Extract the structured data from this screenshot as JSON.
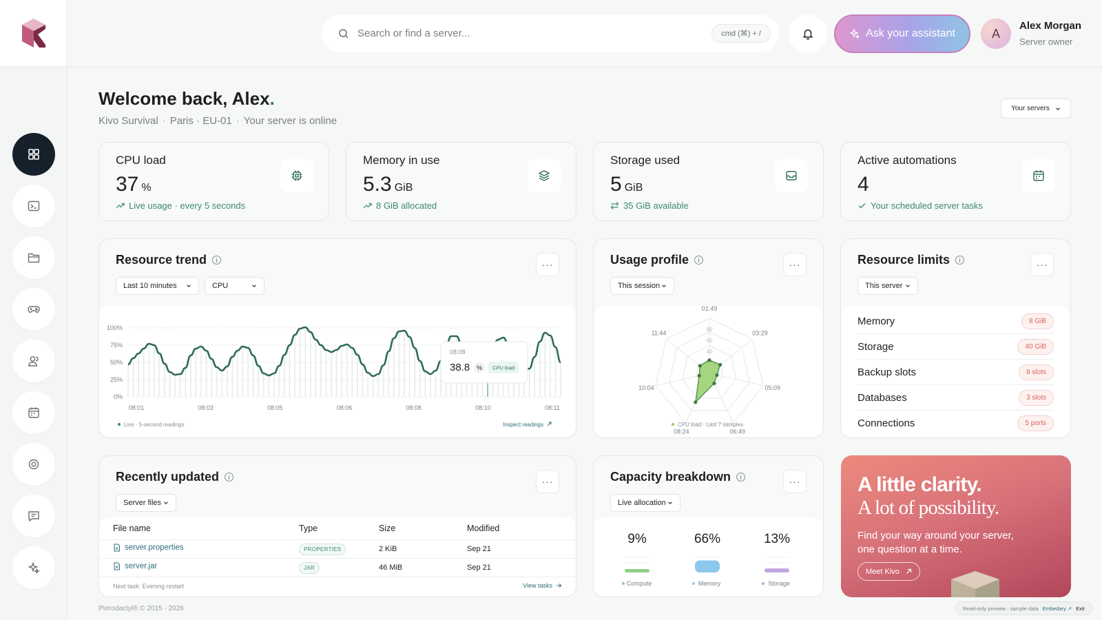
{
  "header": {
    "search_placeholder": "Search or find a server...",
    "shortcut": "cmd (⌘) + /",
    "assistant_label": "Ask your assistant",
    "user": {
      "initial": "A",
      "name": "Alex Morgan",
      "role": "Server owner"
    }
  },
  "sidebar": {
    "items": [
      {
        "icon": "dashboard-icon",
        "active": true
      },
      {
        "icon": "terminal-icon"
      },
      {
        "icon": "folder-icon"
      },
      {
        "icon": "gamepad-icon"
      },
      {
        "icon": "users-icon"
      },
      {
        "icon": "calendar-icon"
      },
      {
        "icon": "settings-icon"
      },
      {
        "icon": "chat-icon"
      },
      {
        "icon": "sparkle-icon"
      }
    ]
  },
  "welcome": {
    "title": "Welcome back, Alex",
    "server_name": "Kivo Survival",
    "location": "Paris · EU-01",
    "status": "Your server is online",
    "servers_button": "Your servers"
  },
  "stats": [
    {
      "label": "CPU load",
      "value": "37",
      "unit": "%",
      "note": "Live usage · every 5 seconds",
      "icon": "cpu-icon"
    },
    {
      "label": "Memory in use",
      "value": "5.3",
      "unit": "GiB",
      "note": "8 GiB allocated",
      "icon": "layers-icon"
    },
    {
      "label": "Storage used",
      "value": "5",
      "unit": "GiB",
      "note": "35 GiB available",
      "icon": "inbox-icon"
    },
    {
      "label": "Active automations",
      "value": "4",
      "unit": "",
      "note": "Your scheduled server tasks",
      "icon": "calendar-icon"
    }
  ],
  "resource_trend": {
    "title": "Resource trend",
    "range_select": "Last 10 minutes",
    "metric_select": "CPU",
    "footer_left": "Live · 5-second readings",
    "footer_right": "Inspect readings",
    "tooltip": {
      "time": "08:08",
      "value": "38.8",
      "unit": "%",
      "tag": "CPU load"
    }
  },
  "usage_profile": {
    "title": "Usage profile",
    "select": "This session",
    "legend": "CPU load · Last 7 samples"
  },
  "resource_limits": {
    "title": "Resource limits",
    "select": "This server",
    "rows": [
      {
        "name": "Memory",
        "value": "8 GiB"
      },
      {
        "name": "Storage",
        "value": "40 GiB"
      },
      {
        "name": "Backup slots",
        "value": "8 slots"
      },
      {
        "name": "Databases",
        "value": "3 slots"
      },
      {
        "name": "Connections",
        "value": "5 ports"
      }
    ]
  },
  "recently_updated": {
    "title": "Recently updated",
    "select": "Server files",
    "columns": [
      "File name",
      "Type",
      "Size",
      "Modified"
    ],
    "rows": [
      {
        "name": "server.properties",
        "type": "PROPERTIES",
        "size": "2 KiB",
        "modified": "Sep 21"
      },
      {
        "name": "server.jar",
        "type": "JAR",
        "size": "46 MiB",
        "modified": "Sep 21"
      }
    ],
    "footer_left": "Next task: Evening restart",
    "footer_right": "View tasks"
  },
  "capacity": {
    "title": "Capacity breakdown",
    "select": "Live allocation",
    "items": [
      {
        "pct": "9%",
        "label": "Compute",
        "fraction": 0.09,
        "color": "#8fd08a"
      },
      {
        "pct": "66%",
        "label": "Memory",
        "fraction": 0.66,
        "color": "#8cc8ec"
      },
      {
        "pct": "13%",
        "label": "Storage",
        "fraction": 0.13,
        "color": "#c2a6e0"
      }
    ]
  },
  "promo": {
    "line1": "A little clarity.",
    "line2": "A lot of possibility.",
    "body": "Find your way around your server, one question at a time.",
    "button": "Meet Kivo"
  },
  "footer": {
    "copyright": "Pterodactyl® © 2015 - 2026",
    "preview": "Read-only preview · sample data",
    "embed": "Embedary",
    "exit": "Exit"
  },
  "chart_data": [
    {
      "type": "line",
      "title": "Resource trend",
      "series": [
        {
          "name": "CPU load",
          "values": [
            47,
            56,
            63,
            70,
            77,
            75,
            63,
            48,
            36,
            32,
            33,
            42,
            60,
            70,
            73,
            67,
            55,
            43,
            38,
            44,
            58,
            67,
            73,
            71,
            60,
            45,
            34,
            31,
            34,
            45,
            61,
            75,
            90,
            99,
            101,
            94,
            83,
            75,
            68,
            65,
            68,
            74,
            76,
            71,
            61,
            47,
            35,
            30,
            33,
            46,
            66,
            85,
            95,
            96,
            87,
            71,
            52,
            37,
            33,
            38,
            52,
            75,
            88,
            88,
            77,
            58,
            43,
            38,
            43,
            58,
            74,
            83,
            86,
            76,
            62,
            45,
            36,
            41,
            58,
            80,
            93,
            89,
            72,
            50
          ]
        }
      ],
      "x_ticks": [
        "08:01",
        "08:03",
        "08:05",
        "08:06",
        "08:08",
        "08:10",
        "08:11"
      ],
      "y_ticks": [
        "0%",
        "25%",
        "50%",
        "75%",
        "100%"
      ],
      "ylim": [
        0,
        100
      ],
      "color": "#2f6a5a"
    },
    {
      "type": "radar",
      "title": "Usage profile",
      "axes": [
        "01:49",
        "03:29",
        "05:09",
        "06:49",
        "08:24",
        "10:04",
        "11:44"
      ],
      "ring_labels": [
        "20",
        "40",
        "60",
        "80"
      ],
      "values": [
        24,
        25,
        14,
        20,
        58,
        19,
        22
      ],
      "max": 100,
      "color": "#96d06a"
    }
  ]
}
